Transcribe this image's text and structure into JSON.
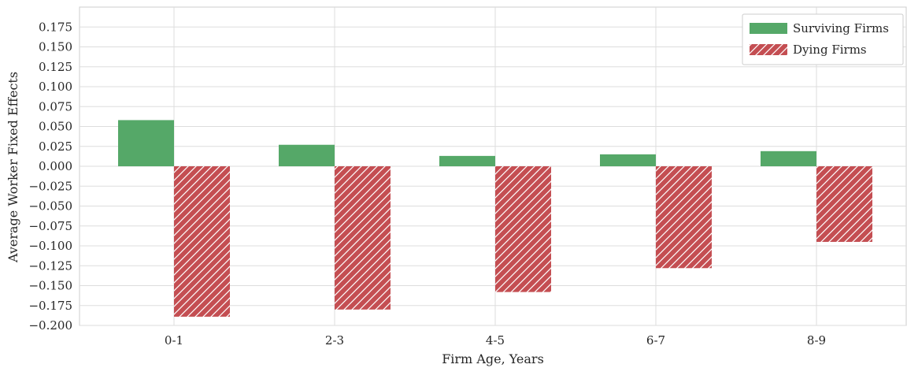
{
  "chart_data": {
    "type": "bar",
    "xlabel": "Firm Age, Years",
    "ylabel": "Average Worker Fixed Effects",
    "categories": [
      "0-1",
      "2-3",
      "4-5",
      "6-7",
      "8-9"
    ],
    "series": [
      {
        "name": "Surviving Firms",
        "values": [
          0.058,
          0.027,
          0.013,
          0.015,
          0.019
        ],
        "color": "#55a868",
        "pattern": "solid"
      },
      {
        "name": "Dying Firms",
        "values": [
          -0.189,
          -0.18,
          -0.158,
          -0.128,
          -0.095
        ],
        "color": "#c44e52",
        "pattern": "hatch"
      }
    ],
    "ylim": [
      -0.2,
      0.2
    ],
    "yticks": [
      "0.175",
      "0.150",
      "0.125",
      "0.100",
      "0.075",
      "0.050",
      "0.025",
      "0.000",
      "−0.025",
      "−0.050",
      "−0.075",
      "−0.100",
      "−0.125",
      "−0.150",
      "−0.175",
      "−0.200"
    ],
    "ytick_values": [
      0.175,
      0.15,
      0.125,
      0.1,
      0.075,
      0.05,
      0.025,
      0,
      -0.025,
      -0.05,
      -0.075,
      -0.1,
      -0.125,
      -0.15,
      -0.175,
      -0.2
    ],
    "grid": true,
    "legend_position": "top-right"
  }
}
